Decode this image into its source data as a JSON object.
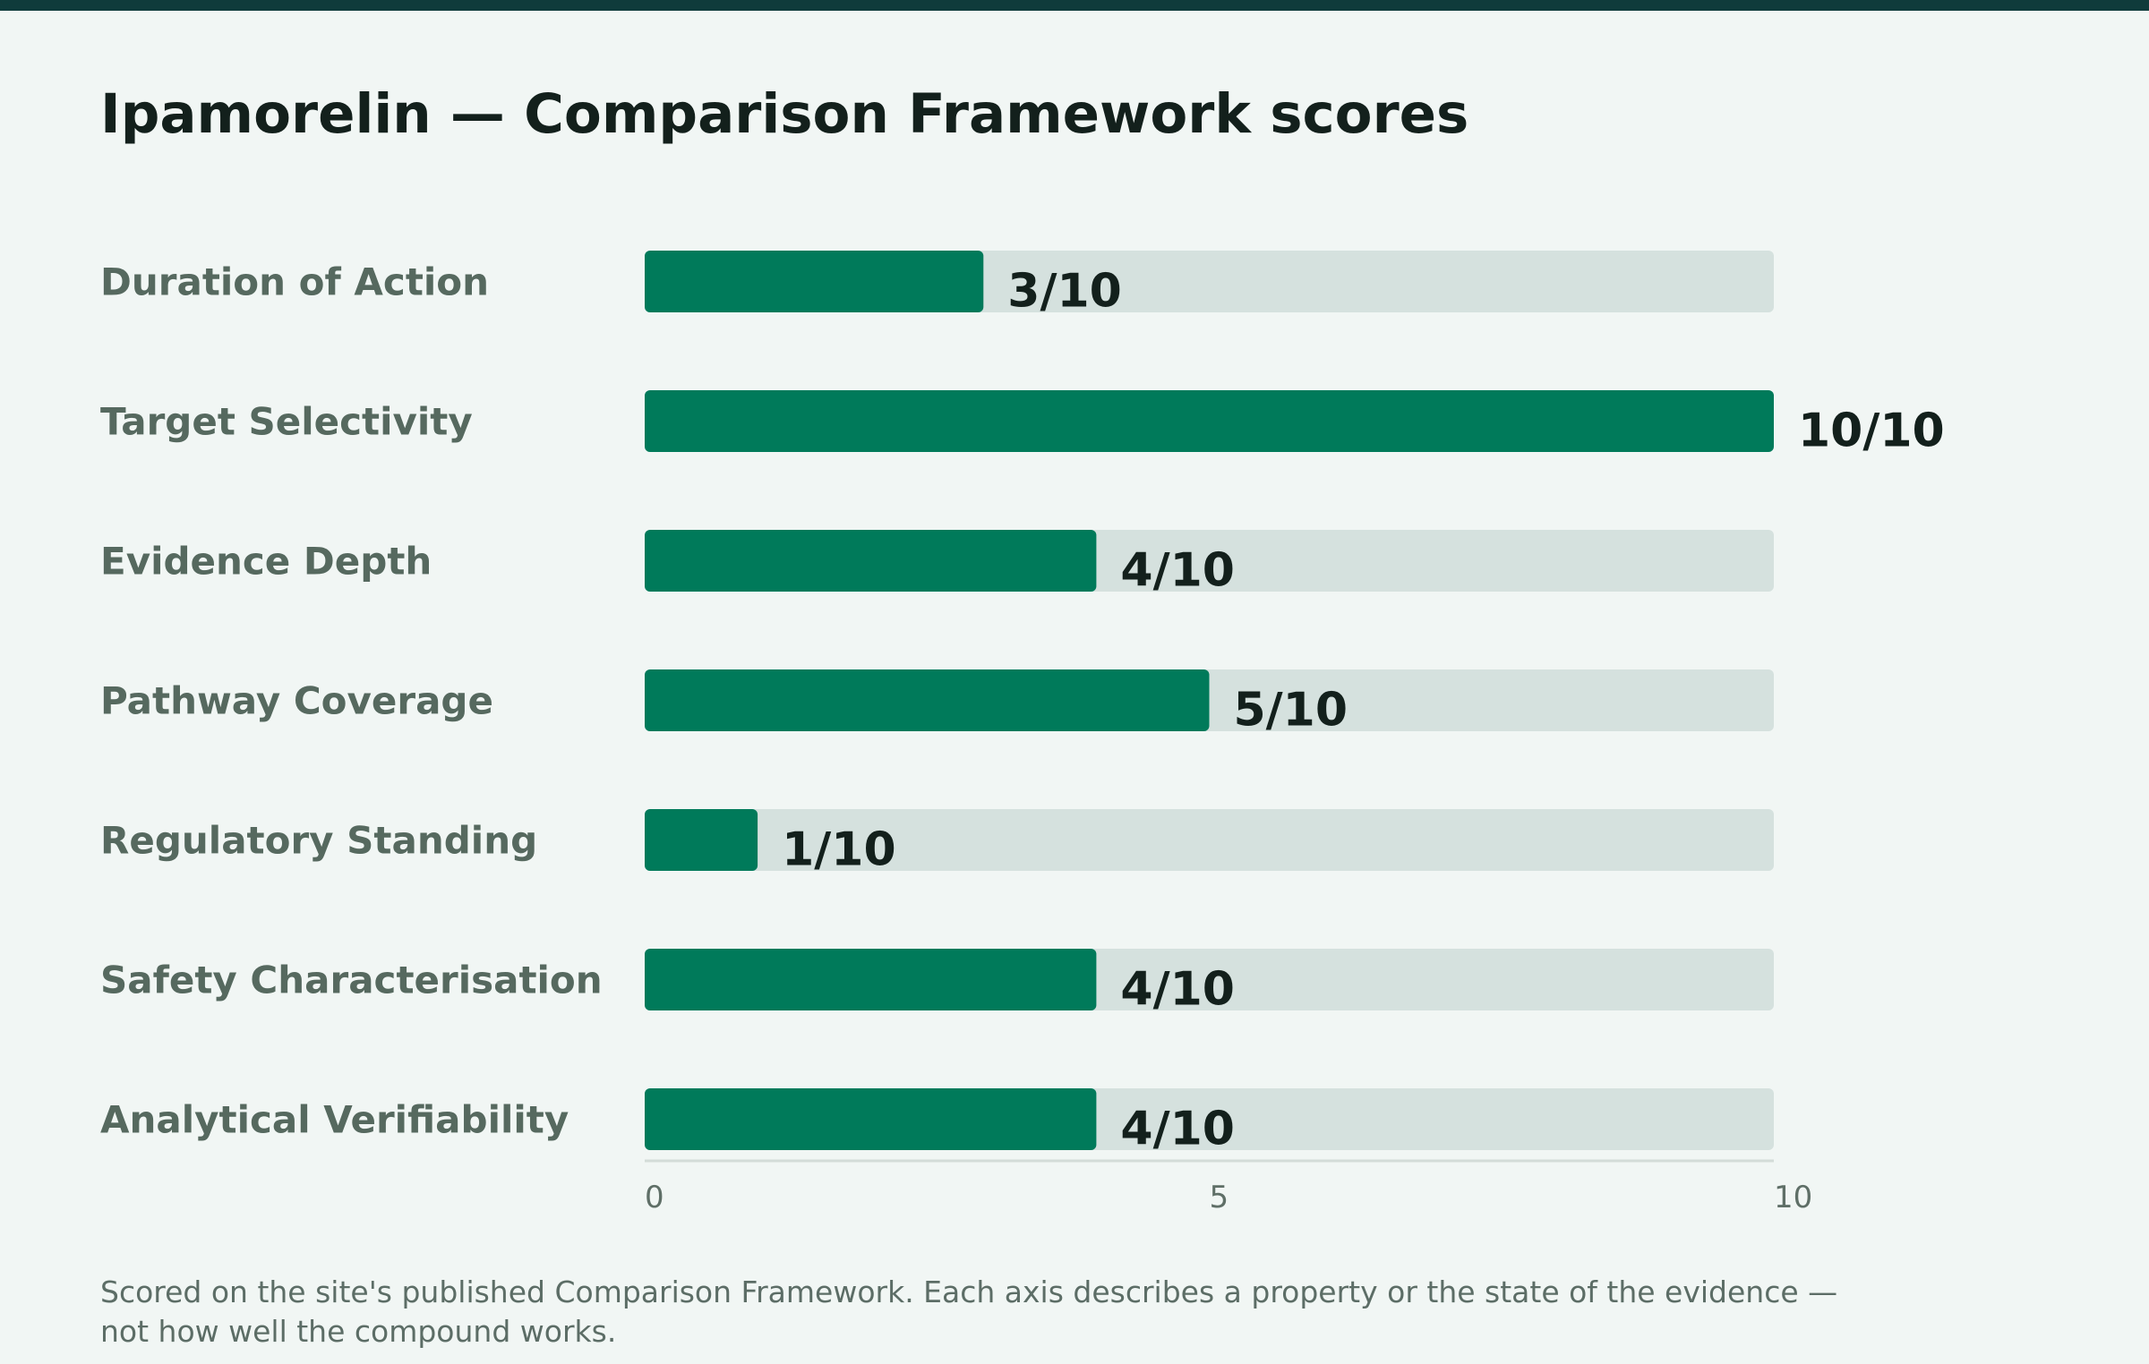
{
  "title": "Ipamorelin — Comparison Framework scores",
  "footnote": "Scored on the site's published Comparison Framework. Each axis describes a property or the state of the evidence — not how well the compound works.",
  "colors": {
    "background": "#f1f6f4",
    "top_bar": "#0f3b3b",
    "bar_fill": "#007a5a",
    "bar_track": "#d5e1de",
    "category_text": "#56695f",
    "value_text": "#13201c",
    "axis_line": "#d3dcd8"
  },
  "chart_data": {
    "type": "bar",
    "orientation": "horizontal",
    "categories": [
      "Duration of Action",
      "Target Selectivity",
      "Evidence Depth",
      "Pathway Coverage",
      "Regulatory Standing",
      "Safety Characterisation",
      "Analytical Verifiability"
    ],
    "values": [
      3,
      10,
      4,
      5,
      1,
      4,
      4
    ],
    "value_labels": [
      "3/10",
      "10/10",
      "4/10",
      "5/10",
      "1/10",
      "4/10",
      "4/10"
    ],
    "xlim": [
      0,
      10
    ],
    "x_ticks": [
      0,
      5,
      10
    ],
    "x_tick_labels": [
      "0",
      "5",
      "10"
    ],
    "grid": false,
    "legend": "none"
  }
}
